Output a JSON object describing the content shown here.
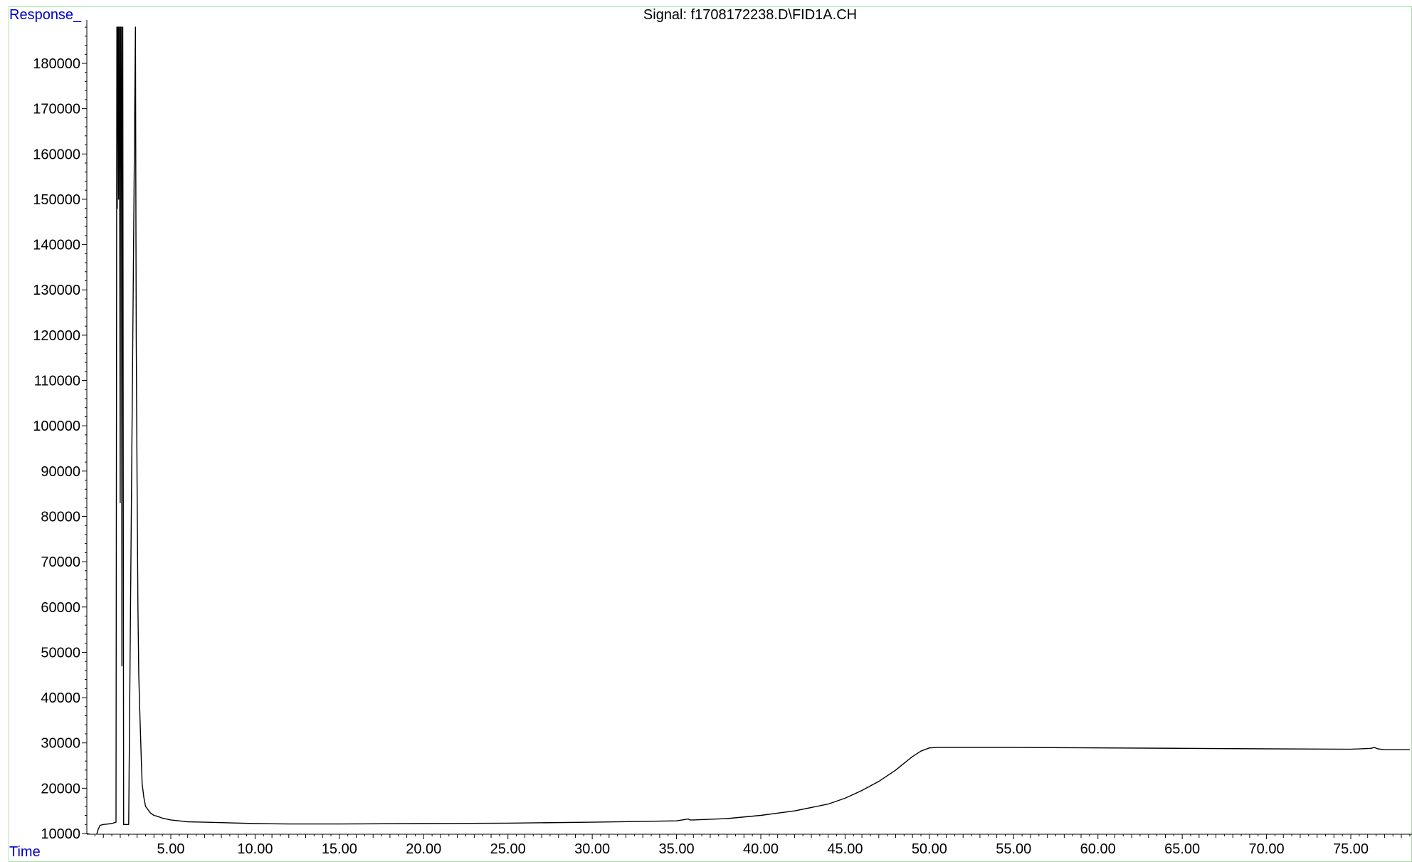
{
  "chart_data": {
    "type": "line",
    "title": "Signal: f1708172238.D\\FID1A.CH",
    "ylabel": "Response_",
    "xlabel": "Time",
    "xlim": [
      0.0,
      78.5
    ],
    "ylim": [
      9500,
      188000
    ],
    "x_ticks": [
      "5.00",
      "10.00",
      "15.00",
      "20.00",
      "25.00",
      "30.00",
      "35.00",
      "40.00",
      "45.00",
      "50.00",
      "55.00",
      "60.00",
      "65.00",
      "70.00",
      "75.00"
    ],
    "y_ticks": [
      "10000",
      "20000",
      "30000",
      "40000",
      "50000",
      "60000",
      "70000",
      "80000",
      "90000",
      "100000",
      "110000",
      "120000",
      "130000",
      "140000",
      "150000",
      "160000",
      "170000",
      "180000"
    ],
    "grid": false,
    "series": [
      {
        "x": [
          0.0,
          0.5,
          0.6,
          0.7,
          0.8,
          1.0,
          1.5,
          1.75,
          1.8,
          1.82,
          1.85,
          1.88,
          1.9,
          1.92,
          1.95,
          2.0,
          2.02,
          2.05,
          2.08,
          2.1,
          2.12,
          2.15,
          2.2,
          2.5,
          2.9,
          2.95,
          3.0,
          3.05,
          3.1,
          3.15,
          3.2,
          3.25,
          3.3,
          3.4,
          3.5,
          3.6,
          3.7,
          3.8,
          4.0,
          4.2,
          4.5,
          5.0,
          5.5,
          6.0,
          7.0,
          8.0,
          10.0,
          12.0,
          15.0,
          20.0,
          25.0,
          30.0,
          35.0,
          35.7,
          35.8,
          36.0,
          38.0,
          40.0,
          42.0,
          44.0,
          45.0,
          46.0,
          47.0,
          48.0,
          48.5,
          49.0,
          49.5,
          50.0,
          50.5,
          51.0,
          55.0,
          60.0,
          65.0,
          70.0,
          75.0,
          76.2,
          76.4,
          76.6,
          77.0,
          78.5
        ],
        "y": [
          10000,
          9600,
          9800,
          11000,
          11800,
          12000,
          12200,
          12500,
          188000,
          148000,
          188000,
          188000,
          150000,
          188000,
          188000,
          83000,
          188000,
          188000,
          150000,
          47000,
          188000,
          188000,
          12000,
          12000,
          188000,
          120000,
          88000,
          60000,
          45000,
          38000,
          32000,
          26000,
          21000,
          18000,
          16000,
          15500,
          15000,
          14500,
          14000,
          13800,
          13400,
          13000,
          12800,
          12600,
          12500,
          12400,
          12200,
          12100,
          12100,
          12200,
          12300,
          12500,
          12800,
          13200,
          13000,
          13000,
          13300,
          14000,
          15000,
          16500,
          17800,
          19500,
          21500,
          24000,
          25500,
          27000,
          28200,
          28900,
          29000,
          29000,
          29000,
          28900,
          28800,
          28700,
          28600,
          28800,
          29000,
          28700,
          28500,
          28500
        ]
      }
    ]
  }
}
